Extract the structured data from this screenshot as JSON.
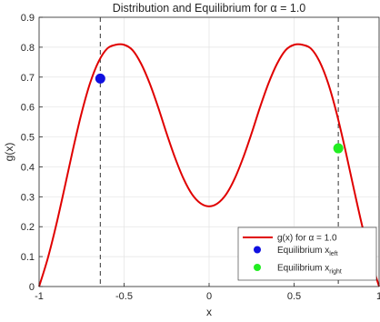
{
  "chart_data": {
    "type": "line",
    "title": "Distribution and Equilibrium for α = 1.0",
    "xlabel": "x",
    "ylabel": "g(x)",
    "xlim": [
      -1,
      1
    ],
    "ylim": [
      0,
      0.9
    ],
    "grid": true,
    "xticks": [
      -1,
      -0.5,
      0,
      0.5,
      1
    ],
    "xtick_labels": [
      "-1",
      "-0.5",
      "0",
      "0.5",
      "1"
    ],
    "yticks": [
      0,
      0.1,
      0.2,
      0.3,
      0.4,
      0.5,
      0.6,
      0.7,
      0.8,
      0.9
    ],
    "ytick_labels": [
      "0",
      "0.1",
      "0.2",
      "0.3",
      "0.4",
      "0.5",
      "0.6",
      "0.7",
      "0.8",
      "0.9"
    ],
    "series": [
      {
        "name": "g(x) for α = 1.0",
        "color": "#e00000",
        "x": [
          -1.0,
          -0.95,
          -0.9,
          -0.85,
          -0.8,
          -0.75,
          -0.7,
          -0.65,
          -0.6,
          -0.55,
          -0.5,
          -0.45,
          -0.4,
          -0.35,
          -0.3,
          -0.25,
          -0.2,
          -0.15,
          -0.1,
          -0.05,
          0.0,
          0.05,
          0.1,
          0.15,
          0.2,
          0.25,
          0.3,
          0.35,
          0.4,
          0.45,
          0.5,
          0.55,
          0.6,
          0.65,
          0.7,
          0.75,
          0.8,
          0.85,
          0.9,
          0.95,
          1.0
        ],
        "y": [
          0.0,
          0.092,
          0.204,
          0.33,
          0.46,
          0.58,
          0.68,
          0.752,
          0.795,
          0.808,
          0.808,
          0.79,
          0.745,
          0.68,
          0.6,
          0.512,
          0.43,
          0.36,
          0.308,
          0.278,
          0.268,
          0.278,
          0.308,
          0.36,
          0.43,
          0.512,
          0.6,
          0.68,
          0.745,
          0.79,
          0.808,
          0.808,
          0.795,
          0.752,
          0.68,
          0.58,
          0.46,
          0.33,
          0.204,
          0.092,
          0.0
        ]
      }
    ],
    "equilibria": [
      {
        "name": "Equilibrium x",
        "subscript": "left",
        "x": -0.64,
        "y": 0.695,
        "color": "#1010e0"
      },
      {
        "name": "Equilibrium x",
        "subscript": "right",
        "x": 0.76,
        "y": 0.462,
        "color": "#22ee22"
      }
    ],
    "vlines": [
      -0.64,
      0.76
    ],
    "legend_placement": "bottom-right"
  }
}
